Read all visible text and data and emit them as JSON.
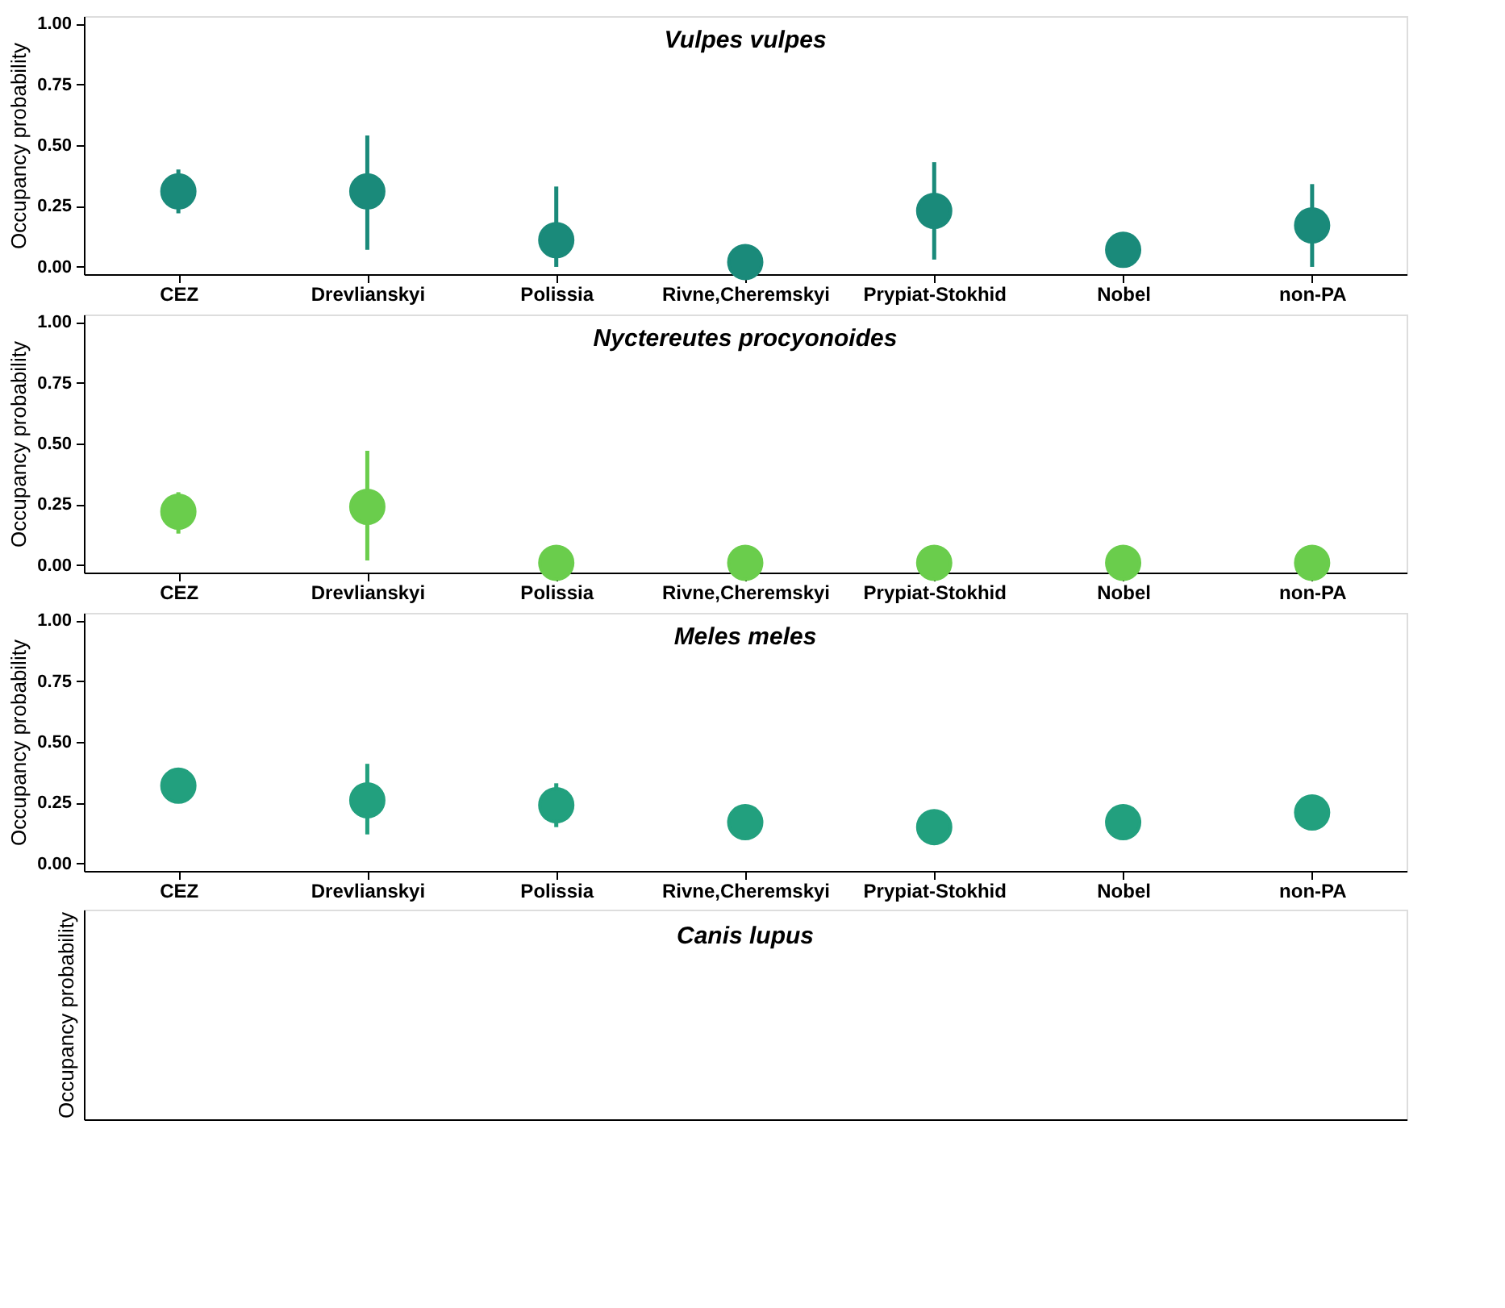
{
  "chart_data": [
    {
      "type": "scatter",
      "title": "Vulpes vulpes",
      "ylabel": "Occupancy probability",
      "categories": [
        "CEZ",
        "Drevlianskyi",
        "Polissia",
        "Rivne,Cheremskyi",
        "Prypiat-Stokhid",
        "Nobel",
        "non-PA"
      ],
      "values": [
        0.31,
        0.31,
        0.11,
        0.02,
        0.23,
        0.07,
        0.17
      ],
      "errors": [
        [
          0.22,
          0.4
        ],
        [
          0.07,
          0.54
        ],
        [
          0.0,
          0.33
        ],
        null,
        [
          0.03,
          0.43
        ],
        null,
        [
          0.0,
          0.34
        ]
      ],
      "color": "#1a8a7a",
      "marker": "circle",
      "ylim": [
        -0.03,
        1.03
      ],
      "yticks": [
        {
          "value": 0,
          "label": "0.00"
        },
        {
          "value": 0.25,
          "label": "0.25"
        },
        {
          "value": 0.5,
          "label": "0.50"
        },
        {
          "value": 0.75,
          "label": "0.75"
        },
        {
          "value": 1,
          "label": "1.00"
        }
      ],
      "grid": false,
      "legend": false
    },
    {
      "type": "scatter",
      "title": "Nyctereutes procyonoides",
      "ylabel": "Occupancy probability",
      "categories": [
        "CEZ",
        "Drevlianskyi",
        "Polissia",
        "Rivne,Cheremskyi",
        "Prypiat-Stokhid",
        "Nobel",
        "non-PA"
      ],
      "values": [
        0.22,
        0.24,
        0.01,
        0.01,
        0.01,
        0.01,
        0.01
      ],
      "errors": [
        [
          0.13,
          0.3
        ],
        [
          0.02,
          0.47
        ],
        null,
        null,
        null,
        null,
        null
      ],
      "color": "#6acd4c",
      "marker": "circle",
      "ylim": [
        -0.03,
        1.03
      ],
      "yticks": [
        {
          "value": 0,
          "label": "0.00"
        },
        {
          "value": 0.25,
          "label": "0.25"
        },
        {
          "value": 0.5,
          "label": "0.50"
        },
        {
          "value": 0.75,
          "label": "0.75"
        },
        {
          "value": 1,
          "label": "1.00"
        }
      ],
      "grid": false,
      "legend": false
    },
    {
      "type": "scatter",
      "title": "Meles meles",
      "ylabel": "Occupancy probability",
      "categories": [
        "CEZ",
        "Drevlianskyi",
        "Polissia",
        "Rivne,Cheremskyi",
        "Prypiat-Stokhid",
        "Nobel",
        "non-PA"
      ],
      "values": [
        0.32,
        0.26,
        0.24,
        0.17,
        0.15,
        0.17,
        0.21
      ],
      "errors": [
        [
          0.32,
          0.39
        ],
        [
          0.12,
          0.41
        ],
        [
          0.15,
          0.33
        ],
        null,
        null,
        null,
        null
      ],
      "color": "#22a07e",
      "marker": "circle",
      "ylim": [
        -0.03,
        1.03
      ],
      "yticks": [
        {
          "value": 0,
          "label": "0.00"
        },
        {
          "value": 0.25,
          "label": "0.25"
        },
        {
          "value": 0.5,
          "label": "0.50"
        },
        {
          "value": 0.75,
          "label": "0.75"
        },
        {
          "value": 1,
          "label": "1.00"
        }
      ],
      "grid": false,
      "legend": false
    },
    {
      "type": "other",
      "title": "Canis lupus",
      "ylabel": "Occupancy probability"
    }
  ]
}
